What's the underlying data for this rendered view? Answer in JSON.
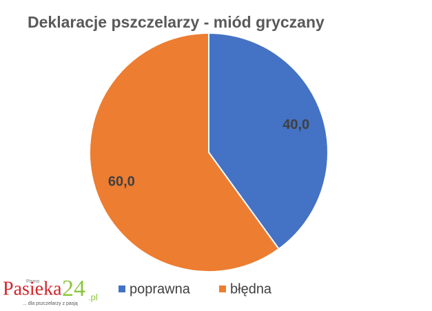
{
  "chart_data": {
    "type": "pie",
    "title": "Deklaracje pszczelarzy - miód gryczany",
    "categories": [
      "poprawna",
      "błędna"
    ],
    "values": [
      40,
      60
    ],
    "value_labels": [
      "40,0",
      "60,0"
    ],
    "colors": [
      "#4472c4",
      "#ed7d31"
    ],
    "legend": "bottom"
  },
  "logo": {
    "top": "Pismo",
    "name": "Pasieka",
    "number": "24",
    "domain": ".pl",
    "slogan": "... dla pszczelarzy z pasją"
  }
}
